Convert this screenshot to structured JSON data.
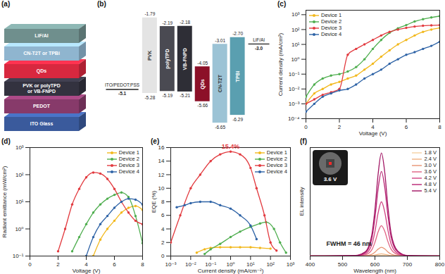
{
  "diagrams": {
    "a": {
      "panel_label": "(a)",
      "layers": [
        {
          "label": [
            "LiF/Al"
          ],
          "color": "#6f8f8d"
        },
        {
          "label": [
            "CN-T2T or TPBi"
          ],
          "color": "#8fb5cf"
        },
        {
          "label": [
            "QDs"
          ],
          "color": "#d8283f"
        },
        {
          "label": [
            "PVK or polyTPD",
            "or VB-FNPD"
          ],
          "color": "#33323f"
        },
        {
          "label": [
            "PEDOT"
          ],
          "color": "#873a6a"
        },
        {
          "label": [
            "ITO Glass"
          ],
          "color": "#3a5a9c"
        }
      ]
    },
    "b": {
      "panel_label": "(b)",
      "anode": {
        "label": "ITO/PEDOT:PSS",
        "level": -5.1
      },
      "cathode": {
        "label": "LiF/Al",
        "level": {
          "value": -3,
          "label": "-3.0"
        }
      },
      "materials": [
        {
          "name": "PVK",
          "lumo": -1.79,
          "homo": -5.28,
          "color": "#e4e4e4"
        },
        {
          "name": "polyTPD",
          "lumo": -2.19,
          "homo": -5.19,
          "color": "#4a4a52"
        },
        {
          "name": "VB-FNPD",
          "lumo": -2.18,
          "homo": -5.21,
          "color": "#2e2e36"
        },
        {
          "name": "QDs",
          "lumo": -4.05,
          "homo": -5.66,
          "color": "#8c1028"
        },
        {
          "name": "CN-T2T",
          "lumo": -3.01,
          "homo": -6.65,
          "color": "#9cc3d5"
        },
        {
          "name": "TPBi",
          "lumo": {
            "value": -2.7,
            "label": "-2.70"
          },
          "homo": -6.29,
          "color": "#5a9fb0"
        }
      ]
    }
  },
  "chart_data": [
    {
      "type": "line",
      "panel_label": "(c)",
      "x_label": "Voltage (V)",
      "y_label": "Current density (mA/cm²)",
      "log": "y",
      "legend": "top-left",
      "marker": "circle",
      "xlim": [
        0,
        8
      ],
      "xticks": [
        0,
        2,
        4,
        6,
        8
      ],
      "ylim": [
        0.0001,
        2000
      ],
      "yticks": [
        {
          "value": 0.0001,
          "label": "10⁻⁴"
        },
        {
          "value": 0.001,
          "label": "10⁻³"
        },
        {
          "value": 0.01,
          "label": "10⁻²"
        },
        {
          "value": 0.1,
          "label": "10⁻¹"
        },
        {
          "value": 1,
          "label": "10⁰"
        },
        {
          "value": 10,
          "label": "10¹"
        },
        {
          "value": 100,
          "label": "10²"
        },
        {
          "value": 1000,
          "label": "10³"
        }
      ],
      "x": [
        0,
        0.5,
        1,
        1.5,
        2,
        2.5,
        3,
        3.5,
        4,
        4.5,
        5,
        5.5,
        6,
        6.5,
        7,
        7.5,
        8
      ],
      "series": [
        {
          "name": "Device 1",
          "color": "#f2b81c",
          "values": [
            0.001,
            0.005,
            0.01,
            0.02,
            0.03,
            0.05,
            0.08,
            0.2,
            0.5,
            1.5,
            4,
            10,
            20,
            40,
            70,
            100,
            130
          ]
        },
        {
          "name": "Device 2",
          "color": "#4fae4f",
          "values": [
            0.003,
            0.02,
            0.05,
            0.08,
            0.1,
            0.15,
            0.3,
            1,
            5,
            20,
            60,
            120,
            200,
            350,
            500,
            650,
            800
          ]
        },
        {
          "name": "Device 3",
          "color": "#e23a3f",
          "values": [
            0.001,
            0.002,
            0.004,
            0.006,
            0.01,
            2,
            5,
            10,
            20,
            40,
            70,
            100,
            130,
            160,
            180,
            190,
            200
          ]
        },
        {
          "name": "Device 4",
          "color": "#2e63a6",
          "values": [
            0.0003,
            0.001,
            0.003,
            0.005,
            0.008,
            0.01,
            0.02,
            0.05,
            0.1,
            0.2,
            0.5,
            1,
            2,
            3,
            5,
            8,
            15
          ]
        }
      ]
    },
    {
      "type": "line",
      "panel_label": "(d)",
      "x_label": "Voltage (V)",
      "y_label": "Radiant emittance (mW/cm²)",
      "log": "y",
      "legend": "top-right",
      "marker": "circle",
      "xlim": [
        0,
        8
      ],
      "xticks": [
        0,
        2,
        4,
        6,
        8
      ],
      "ylim": [
        0.1,
        1000
      ],
      "yticks": [
        {
          "value": 0.1,
          "label": "10⁻¹"
        },
        {
          "value": 1,
          "label": "10⁰"
        },
        {
          "value": 10,
          "label": "10¹"
        },
        {
          "value": 100,
          "label": "10²"
        },
        {
          "value": 1000,
          "label": "10³"
        }
      ],
      "x": [
        2,
        2.5,
        3,
        3.5,
        4,
        4.5,
        5,
        5.5,
        6,
        6.5,
        7,
        7.5,
        8
      ],
      "series": [
        {
          "name": "Device 1",
          "color": "#f2b81c",
          "values": [
            null,
            null,
            null,
            null,
            null,
            0.1,
            0.4,
            1,
            2,
            4,
            6,
            7,
            5
          ]
        },
        {
          "name": "Device 2",
          "color": "#4fae4f",
          "values": [
            null,
            null,
            0.15,
            0.5,
            1.5,
            4,
            8,
            13,
            18,
            22,
            15,
            3,
            0.3
          ]
        },
        {
          "name": "Device 3",
          "color": "#e23a3f",
          "values": [
            0.15,
            1,
            8,
            30,
            80,
            120,
            110,
            70,
            30,
            10,
            4,
            2,
            1.5
          ]
        },
        {
          "name": "Device 4",
          "color": "#2e63a6",
          "values": [
            null,
            null,
            null,
            null,
            0.1,
            0.5,
            1.5,
            3,
            6,
            10,
            13,
            12,
            8
          ]
        }
      ]
    },
    {
      "type": "line",
      "panel_label": "(e)",
      "x_label": "Current density (mA/cm⁻²)",
      "y_label": "EQE (%)",
      "log": "x",
      "legend": "top-right",
      "marker": "circle",
      "xlim": [
        0.001,
        1000
      ],
      "xticks": [
        {
          "value": 0.001,
          "label": "10⁻³"
        },
        {
          "value": 0.01,
          "label": "10⁻²"
        },
        {
          "value": 0.1,
          "label": "10⁻¹"
        },
        {
          "value": 1,
          "label": "10⁰"
        },
        {
          "value": 10,
          "label": "10¹"
        },
        {
          "value": 100,
          "label": "10²"
        },
        {
          "value": 1000,
          "label": "10³"
        }
      ],
      "ylim": [
        0,
        16
      ],
      "yticks": [
        0,
        2,
        4,
        6,
        8,
        10,
        12,
        14,
        16
      ],
      "annotations": [
        {
          "text": "15.4%",
          "x": 1,
          "y": 15.4,
          "color": "#e23a3f"
        }
      ],
      "series": [
        {
          "name": "Device 1",
          "color": "#f2b81c",
          "x": [
            0.02,
            0.05,
            0.1,
            0.3,
            1,
            3,
            10,
            30,
            100
          ],
          "values": [
            0.5,
            1,
            1.2,
            1.3,
            1.3,
            1.3,
            1.3,
            1.2,
            1.1
          ]
        },
        {
          "name": "Device 2",
          "color": "#4fae4f",
          "x": [
            0.05,
            0.1,
            0.3,
            1,
            3,
            10,
            30,
            60,
            150,
            300,
            600
          ],
          "values": [
            0.3,
            1,
            1.8,
            2.8,
            3.6,
            4.3,
            4.8,
            5,
            4,
            2,
            0.5
          ]
        },
        {
          "name": "Device 3",
          "color": "#e23a3f",
          "x": [
            0.001,
            0.003,
            0.01,
            0.03,
            0.1,
            0.3,
            1,
            3,
            10,
            20,
            50,
            100,
            200
          ],
          "values": [
            2,
            6,
            10,
            12,
            14,
            15,
            15.4,
            15,
            13,
            10,
            6,
            2,
            0.8
          ]
        },
        {
          "name": "Device 4",
          "color": "#2e63a6",
          "x": [
            0.002,
            0.005,
            0.01,
            0.03,
            0.1,
            0.3,
            1,
            3,
            10,
            20
          ],
          "values": [
            7.2,
            7.5,
            7.8,
            8,
            8,
            7.5,
            7,
            6,
            4.5,
            2.5
          ]
        }
      ]
    },
    {
      "type": "line",
      "panel_label": "(f)",
      "x_label": "Wavelength (nm)",
      "y_label": "EL intensity",
      "legend": "top-right",
      "tick_labels": "x",
      "inset_label": "3.6 V",
      "xlim": [
        400,
        800
      ],
      "xticks": [
        400,
        500,
        600,
        700,
        800
      ],
      "ylim": [
        0,
        1
      ],
      "annotations": [
        {
          "text": "FWHM = 46 nm",
          "x": 520,
          "y": 0.07,
          "color": "#222222"
        }
      ],
      "x": [
        400,
        540,
        570,
        590,
        600,
        610,
        620,
        630,
        640,
        650,
        670,
        700,
        800
      ],
      "series": [
        {
          "name": "1.8 V",
          "color": "#f5d2a2",
          "values": [
            0,
            0,
            0,
            0.001,
            0.002,
            0.004,
            0.005,
            0.004,
            0.002,
            0.001,
            0,
            0,
            0
          ]
        },
        {
          "name": "2.4 V",
          "color": "#f0b282",
          "values": [
            0,
            0,
            0.001,
            0.004,
            0.009,
            0.016,
            0.02,
            0.016,
            0.01,
            0.004,
            0.001,
            0,
            0
          ]
        },
        {
          "name": "3.0 V",
          "color": "#e89272",
          "values": [
            0,
            0,
            0.003,
            0.016,
            0.036,
            0.064,
            0.08,
            0.066,
            0.038,
            0.018,
            0.004,
            0,
            0
          ]
        },
        {
          "name": "3.6 V",
          "color": "#e06282",
          "values": [
            0,
            0.001,
            0.011,
            0.056,
            0.126,
            0.224,
            0.28,
            0.23,
            0.134,
            0.062,
            0.014,
            0.001,
            0
          ]
        },
        {
          "name": "4.2 V",
          "color": "#d04282",
          "values": [
            0,
            0.003,
            0.02,
            0.1,
            0.225,
            0.4,
            0.5,
            0.41,
            0.24,
            0.11,
            0.025,
            0.003,
            0
          ]
        },
        {
          "name": "4.8 V",
          "color": "#b82272",
          "values": [
            0,
            0.004,
            0.031,
            0.156,
            0.351,
            0.624,
            0.78,
            0.64,
            0.374,
            0.172,
            0.039,
            0.004,
            0
          ]
        },
        {
          "name": "5.4 V",
          "color": "#a01262",
          "values": [
            0,
            0.005,
            0.038,
            0.19,
            0.428,
            0.76,
            0.95,
            0.779,
            0.456,
            0.209,
            0.048,
            0.005,
            0
          ]
        }
      ]
    }
  ]
}
